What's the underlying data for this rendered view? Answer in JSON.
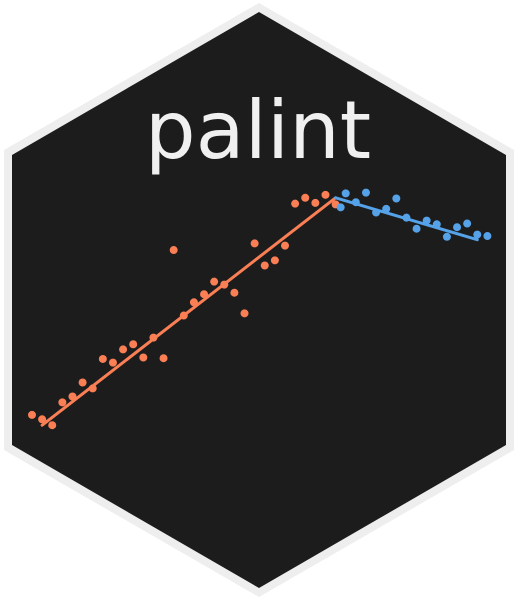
{
  "logo": {
    "title": "palint"
  },
  "colors": {
    "background": "#ffffff",
    "hex_border": "#eeeeee",
    "hex_fill": "#1c1c1d",
    "text": "#f0f0f0",
    "segment_1": "#fa7f55",
    "segment_2": "#55a2e8"
  },
  "chart_data": {
    "type": "scatter",
    "series": [
      {
        "points": [
          [
            0,
            0.64
          ],
          [
            1,
            0.58
          ],
          [
            2,
            0.5
          ],
          [
            3,
            0.81
          ],
          [
            4,
            0.89
          ],
          [
            5,
            1.08
          ],
          [
            6,
            1.0
          ],
          [
            7,
            1.4
          ],
          [
            8,
            1.35
          ],
          [
            9,
            1.53
          ],
          [
            10,
            1.6
          ],
          [
            11,
            1.42
          ],
          [
            12,
            1.69
          ],
          [
            13,
            1.41
          ],
          [
            14,
            2.88
          ],
          [
            15,
            1.99
          ],
          [
            16,
            2.17
          ],
          [
            17,
            2.28
          ],
          [
            18,
            2.45
          ],
          [
            19,
            2.41
          ],
          [
            20,
            2.3
          ],
          [
            21,
            2.02
          ],
          [
            22,
            2.97
          ],
          [
            23,
            2.67
          ],
          [
            24,
            2.74
          ],
          [
            25,
            2.94
          ],
          [
            26,
            3.51
          ],
          [
            27,
            3.59
          ],
          [
            28,
            3.52
          ],
          [
            29,
            3.63
          ],
          [
            30,
            3.5
          ]
        ],
        "fit": [
          [
            1,
            0.5
          ],
          [
            30,
            3.59
          ]
        ]
      },
      {
        "points": [
          [
            30.5,
            3.46
          ],
          [
            31,
            3.65
          ],
          [
            32,
            3.53
          ],
          [
            33,
            3.66
          ],
          [
            34,
            3.39
          ],
          [
            35,
            3.44
          ],
          [
            36,
            3.58
          ],
          [
            37,
            3.32
          ],
          [
            38,
            3.17
          ],
          [
            39,
            3.28
          ],
          [
            40,
            3.23
          ],
          [
            41,
            3.06
          ],
          [
            42,
            3.19
          ],
          [
            43,
            3.24
          ],
          [
            44,
            3.09
          ],
          [
            45,
            3.07
          ]
        ],
        "fit": [
          [
            30,
            3.59
          ],
          [
            44,
            3.02
          ]
        ]
      }
    ]
  }
}
